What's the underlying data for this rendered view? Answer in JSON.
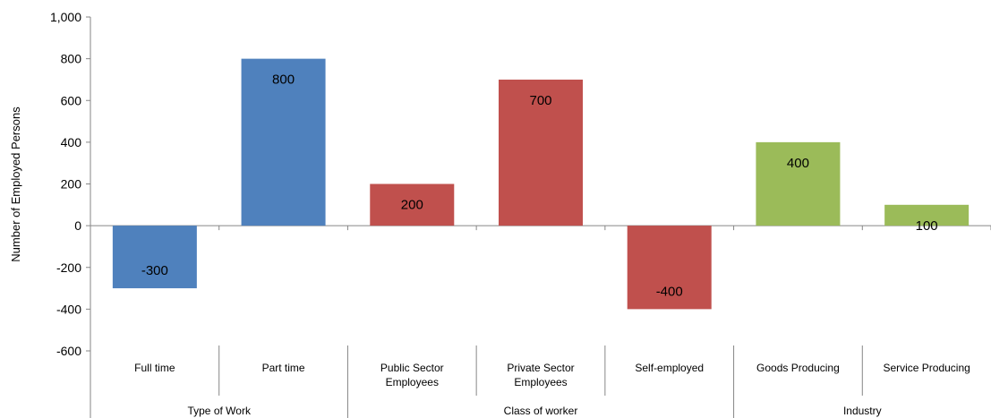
{
  "chart_data": {
    "type": "bar",
    "title": "",
    "xlabel": "",
    "ylabel": "Number of Employed Persons",
    "ylim": [
      -600,
      1000
    ],
    "yticks": [
      -600,
      -400,
      -200,
      0,
      200,
      400,
      600,
      800,
      1000
    ],
    "ytick_labels": [
      "-600",
      "-400",
      "-200",
      "0",
      "200",
      "400",
      "600",
      "800",
      "1,000"
    ],
    "grid": false,
    "legend": "none",
    "categories": [
      [
        "Full time"
      ],
      [
        "Part time"
      ],
      [
        "Public Sector",
        "Employees"
      ],
      [
        "Private Sector",
        "Employees"
      ],
      [
        "Self-employed"
      ],
      [
        "Goods Producing"
      ],
      [
        "Service Producing"
      ]
    ],
    "values": [
      -300,
      800,
      200,
      700,
      -400,
      400,
      100
    ],
    "data_labels": [
      "-300",
      "800",
      "200",
      "700",
      "-400",
      "400",
      "100"
    ],
    "bar_groups": [
      0,
      0,
      1,
      1,
      1,
      2,
      2
    ],
    "groups": [
      {
        "label": "Type of Work",
        "start": 0,
        "count": 2,
        "color": "#4f81bd"
      },
      {
        "label": "Class of worker",
        "start": 2,
        "count": 3,
        "color": "#c0504d"
      },
      {
        "label": "Industry",
        "start": 5,
        "count": 2,
        "color": "#9bbb59"
      }
    ]
  }
}
